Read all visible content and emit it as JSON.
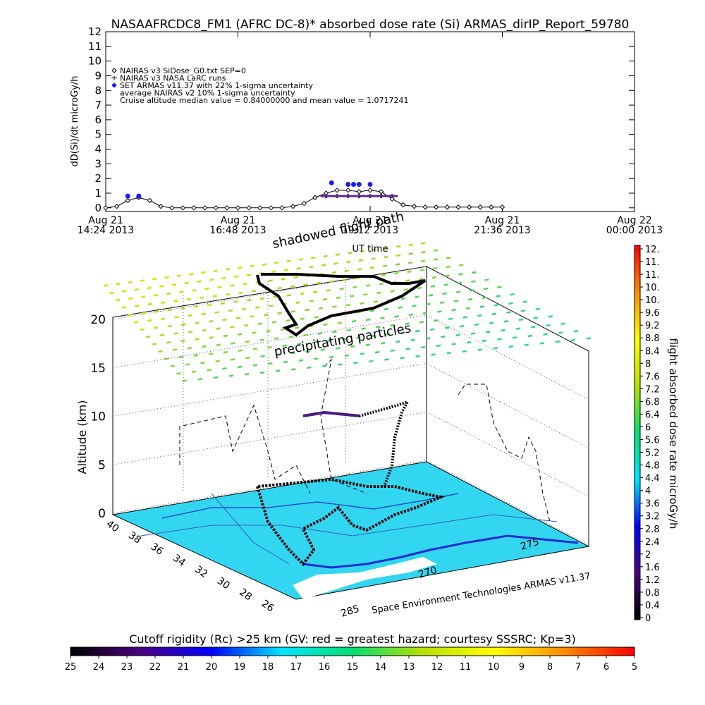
{
  "chart_data": [
    {
      "type": "line",
      "title": "NASAAFRCDC8_FM1 (AFRC DC-8)* absorbed dose rate (Si) ARMAS_dirIP_Report_59780",
      "ylabel": "dD(Si)/dt microGy/h",
      "xlabel": "UT time",
      "xlim": [
        "2013-08-21 14:24",
        "2013-08-22 00:00"
      ],
      "xticks": [
        {
          "value": "2013-08-21 14:24",
          "label": "Aug 21\n14:24 2013"
        },
        {
          "value": "2013-08-21 16:48",
          "label": "Aug 21\n16:48 2013"
        },
        {
          "value": "2013-08-21 19:12",
          "label": "Aug 21\n19:12 2013"
        },
        {
          "value": "2013-08-21 21:36",
          "label": "Aug 21\n21:36 2013"
        },
        {
          "value": "2013-08-22 00:00",
          "label": "Aug 22\n00:00 2013"
        }
      ],
      "ylim": [
        -0.25,
        12
      ],
      "yticks": [
        0,
        1,
        2,
        3,
        4,
        5,
        6,
        7,
        8,
        9,
        10,
        11,
        12
      ],
      "legend_notes": [
        "average NAIRAS v2 10% 1-sigma uncertainty",
        "Cruise altitude median value = 0.84000000 and mean value = 1.0717241"
      ],
      "series": [
        {
          "name": "NAIRAS v3 SiDose_G0.txt SEP=0",
          "color": "#000000",
          "marker": "diamond",
          "x": [
            "2013-08-21 14:24",
            "2013-08-21 14:36",
            "2013-08-21 14:48",
            "2013-08-21 15:00",
            "2013-08-21 15:12",
            "2013-08-21 15:24",
            "2013-08-21 15:36",
            "2013-08-21 15:48",
            "2013-08-21 16:00",
            "2013-08-21 16:12",
            "2013-08-21 16:24",
            "2013-08-21 16:36",
            "2013-08-21 16:48",
            "2013-08-21 17:00",
            "2013-08-21 17:12",
            "2013-08-21 17:24",
            "2013-08-21 17:36",
            "2013-08-21 17:48",
            "2013-08-21 18:00",
            "2013-08-21 18:12",
            "2013-08-21 18:24",
            "2013-08-21 18:36",
            "2013-08-21 18:48",
            "2013-08-21 19:00",
            "2013-08-21 19:12",
            "2013-08-21 19:24",
            "2013-08-21 19:36",
            "2013-08-21 19:48",
            "2013-08-21 20:00",
            "2013-08-21 20:12",
            "2013-08-21 20:24",
            "2013-08-21 20:36",
            "2013-08-21 20:48",
            "2013-08-21 21:00",
            "2013-08-21 21:12",
            "2013-08-21 21:24",
            "2013-08-21 21:36"
          ],
          "values": [
            0,
            0.1,
            0.5,
            0.7,
            0.5,
            0.1,
            0,
            0,
            0,
            0,
            0,
            0,
            0,
            0,
            0,
            0,
            0,
            0.1,
            0.3,
            0.7,
            1.0,
            1.2,
            1.2,
            1.1,
            1.2,
            1.1,
            0.6,
            0.2,
            0.1,
            0.05,
            0.05,
            0.05,
            0.05,
            0.05,
            0.05,
            0.05,
            0.05
          ]
        },
        {
          "name": "NAIRAS v3 NASA LaRC runs",
          "color": "#000000",
          "marker": "plus",
          "x": [
            "2013-08-21 18:24",
            "2013-08-21 18:36",
            "2013-08-21 18:48",
            "2013-08-21 19:00",
            "2013-08-21 19:12",
            "2013-08-21 19:24",
            "2013-08-21 19:36"
          ],
          "values": [
            0.8,
            0.8,
            0.8,
            0.8,
            0.8,
            0.8,
            0.8
          ]
        },
        {
          "name": "SET ARMAS v11.37 with 22% 1-sigma uncertainty",
          "color": "#1a1aff",
          "marker": "circle",
          "x": [
            "2013-08-21 14:48",
            "2013-08-21 15:00",
            "2013-08-21 18:30",
            "2013-08-21 18:48",
            "2013-08-21 18:54",
            "2013-08-21 19:00",
            "2013-08-21 19:12"
          ],
          "values": [
            0.8,
            0.8,
            1.7,
            1.6,
            1.6,
            1.6,
            1.6
          ]
        }
      ]
    },
    {
      "type": "surface3d",
      "zlabel": "Altitude (km)",
      "zlim": [
        0,
        20
      ],
      "zticks": [
        0,
        5,
        10,
        15,
        20
      ],
      "ylim": [
        40,
        26
      ],
      "yticks": [
        40,
        38,
        36,
        34,
        32,
        30,
        28,
        26
      ],
      "xticks": [
        285,
        270,
        275
      ],
      "annotations": [
        "shadowed flight path",
        "precipitating particles"
      ],
      "credit": "Space Environment Technologies ARMAS v11.37"
    },
    {
      "type": "colorbar",
      "label": "flight absorbed dose rate microGy/h",
      "lim": [
        0,
        11.6
      ],
      "colors": [
        "#000000",
        "#4b0082",
        "#0000ff",
        "#00e5ff",
        "#00e070",
        "#b8e000",
        "#ffff00",
        "#ff8c00",
        "#ff0000"
      ],
      "ticks": [
        0,
        0.4,
        0.8,
        1.2,
        1.6,
        2.0,
        2.4,
        2.8,
        3.2,
        3.6,
        4.0,
        4.4,
        4.8,
        5.2,
        5.6,
        6.0,
        6.4,
        6.8,
        7.2,
        7.6,
        8.0,
        8.4,
        8.8,
        9.2,
        9.6,
        {
          "value": 10.0,
          "label": "10."
        },
        {
          "value": 10.4,
          "label": "10."
        },
        {
          "value": 10.8,
          "label": "11."
        },
        {
          "value": 11.2,
          "label": "11."
        },
        {
          "value": 11.6,
          "label": "12."
        }
      ]
    },
    {
      "type": "colorbar",
      "title": "Cutoff rigidity (Rc) >25 km (GV: red = greatest hazard; courtesy SSSRC; Kp=3)",
      "xlim": [
        25,
        5
      ],
      "colors": [
        "#000000",
        "#4b0082",
        "#0000ff",
        "#00e5ff",
        "#00e070",
        "#b8e000",
        "#ffff00",
        "#ff8c00",
        "#ff0000"
      ],
      "xticks": [
        25,
        24,
        23,
        22,
        21,
        20,
        19,
        18,
        17,
        16,
        15,
        14,
        13,
        12,
        11,
        10,
        9,
        8,
        7,
        6,
        5
      ]
    }
  ]
}
